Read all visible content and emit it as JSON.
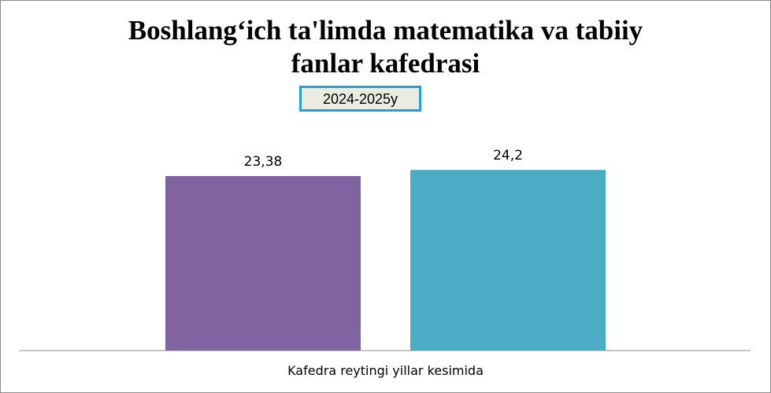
{
  "chart_data": {
    "type": "bar",
    "title": "Boshlang‘ich ta'limda matematika va tabiiy fanlar kafedrasi",
    "title_lines": [
      "Boshlang‘ich ta'limda matematika va tabiiy",
      "fanlar kafedrasi"
    ],
    "annotation": "2024-2025y",
    "categories": [
      "Kafedra reytingi yillar kesimida"
    ],
    "series": [
      {
        "values": [
          23.38
        ],
        "label": "23,38",
        "color": "#8064a2"
      },
      {
        "values": [
          24.2
        ],
        "label": "24,2",
        "color": "#4bacc6"
      }
    ],
    "xlabel": "",
    "ylabel": "",
    "ylim": [
      0,
      30
    ],
    "grid": false,
    "legend": "none"
  }
}
